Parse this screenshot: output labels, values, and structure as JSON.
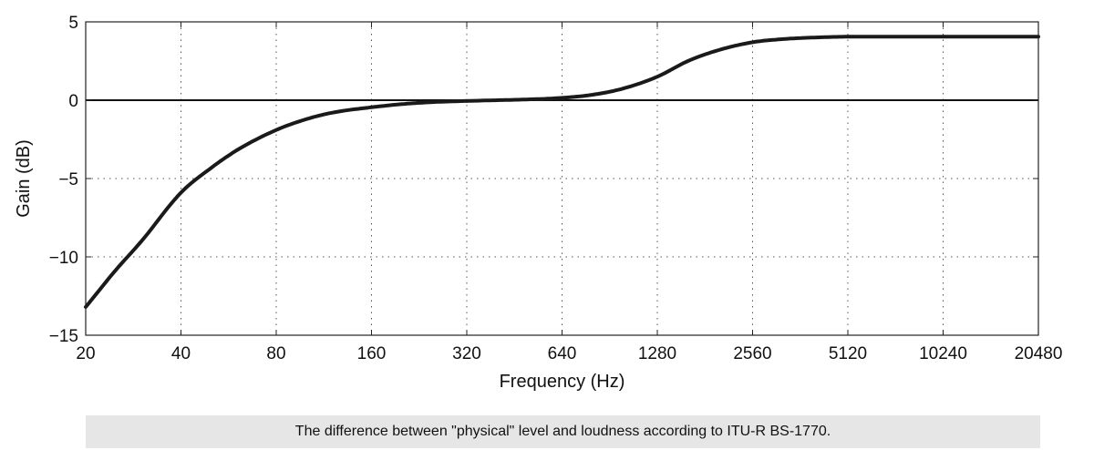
{
  "chart_data": {
    "type": "line",
    "title": "",
    "xlabel": "Frequency (Hz)",
    "ylabel": "Gain (dB)",
    "x_scale": "log2",
    "xlim": [
      20,
      20480
    ],
    "ylim": [
      -15,
      5
    ],
    "x_ticks": [
      "20",
      "40",
      "80",
      "160",
      "320",
      "640",
      "1280",
      "2560",
      "5120",
      "10240",
      "20480"
    ],
    "y_ticks": [
      "5",
      "0",
      "−5",
      "−10",
      "−15"
    ],
    "grid": true,
    "series": [
      {
        "color": "#1a1a1a",
        "x": [
          20,
          25,
          30,
          40,
          50,
          60,
          80,
          100,
          120,
          160,
          200,
          250,
          320,
          400,
          500,
          640,
          800,
          1000,
          1280,
          1600,
          2000,
          2560,
          3200,
          4000,
          5120,
          10240,
          20480
        ],
        "y": [
          -13.2,
          -10.8,
          -9.0,
          -5.9,
          -4.3,
          -3.2,
          -1.9,
          -1.2,
          -0.8,
          -0.45,
          -0.25,
          -0.12,
          -0.05,
          0.0,
          0.05,
          0.15,
          0.35,
          0.75,
          1.5,
          2.5,
          3.2,
          3.7,
          3.9,
          4.0,
          4.05,
          4.05,
          4.05
        ]
      }
    ]
  },
  "caption": "The difference between \"physical\" level and loudness according to ITU-R BS-1770."
}
